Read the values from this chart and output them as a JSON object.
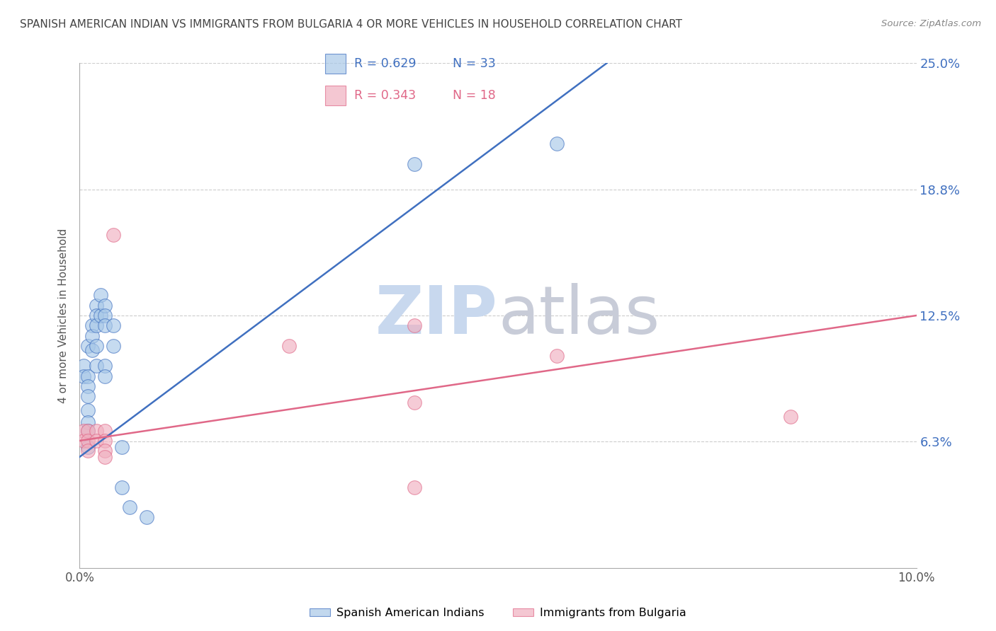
{
  "title": "SPANISH AMERICAN INDIAN VS IMMIGRANTS FROM BULGARIA 4 OR MORE VEHICLES IN HOUSEHOLD CORRELATION CHART",
  "source": "Source: ZipAtlas.com",
  "ylabel": "4 or more Vehicles in Household",
  "xmin": 0.0,
  "xmax": 0.1,
  "ymin": 0.0,
  "ymax": 0.25,
  "ytick_positions": [
    0.0,
    0.0625,
    0.125,
    0.1875,
    0.25
  ],
  "right_ytick_labels": [
    "6.3%",
    "12.5%",
    "18.8%",
    "25.0%"
  ],
  "right_ytick_positions": [
    0.0625,
    0.125,
    0.1875,
    0.25
  ],
  "xtick_positions": [
    0.0,
    0.025,
    0.05,
    0.075,
    0.1
  ],
  "xtick_labels": [
    "0.0%",
    "",
    "",
    "",
    "10.0%"
  ],
  "color_blue": "#a8c8e8",
  "color_pink": "#f0b0c0",
  "line_blue": "#4070c0",
  "line_pink": "#e06888",
  "right_tick_color": "#4070c0",
  "watermark_color": "#d0dff0",
  "legend_r1": "R = 0.629",
  "legend_n1": "N = 33",
  "legend_r2": "R = 0.343",
  "legend_n2": "N = 18",
  "blue_scatter": [
    [
      0.0005,
      0.1
    ],
    [
      0.0005,
      0.095
    ],
    [
      0.001,
      0.11
    ],
    [
      0.001,
      0.095
    ],
    [
      0.001,
      0.09
    ],
    [
      0.001,
      0.085
    ],
    [
      0.001,
      0.078
    ],
    [
      0.001,
      0.072
    ],
    [
      0.001,
      0.068
    ],
    [
      0.001,
      0.06
    ],
    [
      0.0015,
      0.12
    ],
    [
      0.0015,
      0.115
    ],
    [
      0.0015,
      0.108
    ],
    [
      0.002,
      0.13
    ],
    [
      0.002,
      0.125
    ],
    [
      0.002,
      0.12
    ],
    [
      0.002,
      0.11
    ],
    [
      0.002,
      0.1
    ],
    [
      0.0025,
      0.135
    ],
    [
      0.0025,
      0.125
    ],
    [
      0.003,
      0.13
    ],
    [
      0.003,
      0.125
    ],
    [
      0.003,
      0.12
    ],
    [
      0.003,
      0.1
    ],
    [
      0.003,
      0.095
    ],
    [
      0.004,
      0.12
    ],
    [
      0.004,
      0.11
    ],
    [
      0.005,
      0.06
    ],
    [
      0.005,
      0.04
    ],
    [
      0.006,
      0.03
    ],
    [
      0.008,
      0.025
    ],
    [
      0.04,
      0.2
    ],
    [
      0.057,
      0.21
    ]
  ],
  "pink_scatter": [
    [
      0.0005,
      0.068
    ],
    [
      0.0005,
      0.063
    ],
    [
      0.001,
      0.068
    ],
    [
      0.001,
      0.063
    ],
    [
      0.001,
      0.058
    ],
    [
      0.002,
      0.068
    ],
    [
      0.002,
      0.063
    ],
    [
      0.003,
      0.068
    ],
    [
      0.003,
      0.063
    ],
    [
      0.003,
      0.058
    ],
    [
      0.003,
      0.055
    ],
    [
      0.004,
      0.165
    ],
    [
      0.025,
      0.11
    ],
    [
      0.04,
      0.12
    ],
    [
      0.04,
      0.082
    ],
    [
      0.057,
      0.105
    ],
    [
      0.085,
      0.075
    ],
    [
      0.04,
      0.04
    ]
  ],
  "blue_line_x": [
    0.0,
    0.063
  ],
  "blue_line_y": [
    0.055,
    0.25
  ],
  "pink_line_x": [
    0.0,
    0.1
  ],
  "pink_line_y": [
    0.063,
    0.125
  ]
}
